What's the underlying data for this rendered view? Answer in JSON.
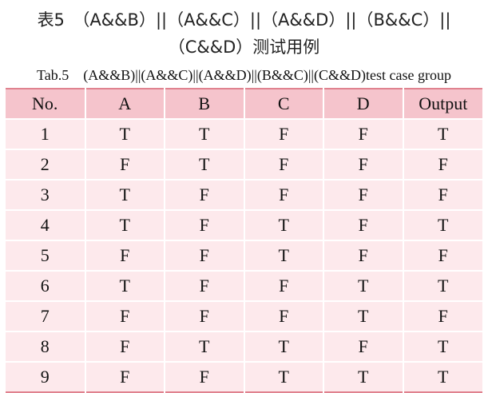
{
  "title": [
    "表5　（A&&B）||（A&&C）||（A&&D）||（B&&C）||",
    "（C&&D）测试用例"
  ],
  "caption": "Tab.5　(A&&B)||(A&&C)||(A&&D)||(B&&C)||(C&&D)test case group",
  "table": {
    "header": [
      "No.",
      "A",
      "B",
      "C",
      "D",
      "Output"
    ],
    "rows": [
      [
        "1",
        "T",
        "T",
        "F",
        "F",
        "T"
      ],
      [
        "2",
        "F",
        "T",
        "F",
        "F",
        "F"
      ],
      [
        "3",
        "T",
        "F",
        "F",
        "F",
        "F"
      ],
      [
        "4",
        "T",
        "F",
        "T",
        "F",
        "T"
      ],
      [
        "5",
        "F",
        "F",
        "T",
        "F",
        "F"
      ],
      [
        "6",
        "T",
        "F",
        "F",
        "T",
        "T"
      ],
      [
        "7",
        "F",
        "F",
        "F",
        "T",
        "F"
      ],
      [
        "8",
        "F",
        "T",
        "T",
        "F",
        "T"
      ],
      [
        "9",
        "F",
        "F",
        "T",
        "T",
        "T"
      ]
    ]
  }
}
